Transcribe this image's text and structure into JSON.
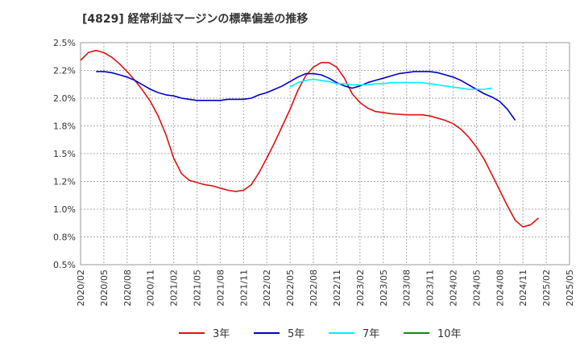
{
  "chart_data": {
    "type": "line",
    "title": "[4829]  経常利益マージンの標準偏差の推移",
    "xlabel": "",
    "ylabel": "",
    "ylim": [
      0.5,
      2.5
    ],
    "grid": true,
    "legend_position": "bottom",
    "x_ticks": [
      "2020/02",
      "2020/05",
      "2020/08",
      "2020/11",
      "2021/02",
      "2021/05",
      "2021/08",
      "2021/11",
      "2022/02",
      "2022/05",
      "2022/08",
      "2022/11",
      "2023/02",
      "2023/05",
      "2023/08",
      "2023/11",
      "2024/02",
      "2024/05",
      "2024/08",
      "2024/11",
      "2025/02",
      "2025/05"
    ],
    "y_ticks": [
      {
        "value": 0.5,
        "label": "0.5%"
      },
      {
        "value": 0.75,
        "label": "0.8%"
      },
      {
        "value": 1.0,
        "label": "1.0%"
      },
      {
        "value": 1.25,
        "label": "1.2%"
      },
      {
        "value": 1.5,
        "label": "1.5%"
      },
      {
        "value": 1.75,
        "label": "1.8%"
      },
      {
        "value": 2.0,
        "label": "2.0%"
      },
      {
        "value": 2.25,
        "label": "2.2%"
      },
      {
        "value": 2.5,
        "label": "2.5%"
      }
    ],
    "series": [
      {
        "name": "3年",
        "color": "#dd1111",
        "start_index": 0,
        "values": [
          2.34,
          2.41,
          2.43,
          2.41,
          2.37,
          2.31,
          2.24,
          2.16,
          2.07,
          1.97,
          1.84,
          1.67,
          1.46,
          1.32,
          1.26,
          1.24,
          1.22,
          1.21,
          1.19,
          1.17,
          1.16,
          1.17,
          1.22,
          1.33,
          1.46,
          1.6,
          1.75,
          1.9,
          2.07,
          2.2,
          2.28,
          2.32,
          2.32,
          2.28,
          2.18,
          2.04,
          1.96,
          1.91,
          1.88,
          1.87,
          1.86,
          1.855,
          1.85,
          1.85,
          1.85,
          1.84,
          1.82,
          1.8,
          1.77,
          1.72,
          1.65,
          1.56,
          1.45,
          1.31,
          1.17,
          1.03,
          0.9,
          0.84,
          0.86,
          0.92
        ]
      },
      {
        "name": "5年",
        "color": "#0000cc",
        "start_index": 2,
        "values": [
          2.24,
          2.24,
          2.23,
          2.21,
          2.19,
          2.16,
          2.12,
          2.08,
          2.05,
          2.03,
          2.02,
          2.0,
          1.99,
          1.98,
          1.98,
          1.98,
          1.98,
          1.99,
          1.99,
          1.99,
          2.0,
          2.03,
          2.05,
          2.08,
          2.11,
          2.15,
          2.19,
          2.22,
          2.22,
          2.21,
          2.18,
          2.14,
          2.11,
          2.09,
          2.11,
          2.14,
          2.16,
          2.18,
          2.2,
          2.22,
          2.23,
          2.24,
          2.24,
          2.24,
          2.23,
          2.21,
          2.19,
          2.16,
          2.12,
          2.08,
          2.04,
          2.01,
          1.97,
          1.9,
          1.8
        ]
      },
      {
        "name": "7年",
        "color": "#00eeff",
        "start_index": 27,
        "values": [
          2.1,
          2.14,
          2.16,
          2.17,
          2.16,
          2.15,
          2.13,
          2.13,
          2.12,
          2.12,
          2.12,
          2.13,
          2.13,
          2.14,
          2.14,
          2.14,
          2.14,
          2.14,
          2.13,
          2.12,
          2.11,
          2.1,
          2.09,
          2.08,
          2.08,
          2.08,
          2.09
        ]
      },
      {
        "name": "10年",
        "color": "#118811",
        "start_index": 0,
        "values": []
      }
    ]
  }
}
